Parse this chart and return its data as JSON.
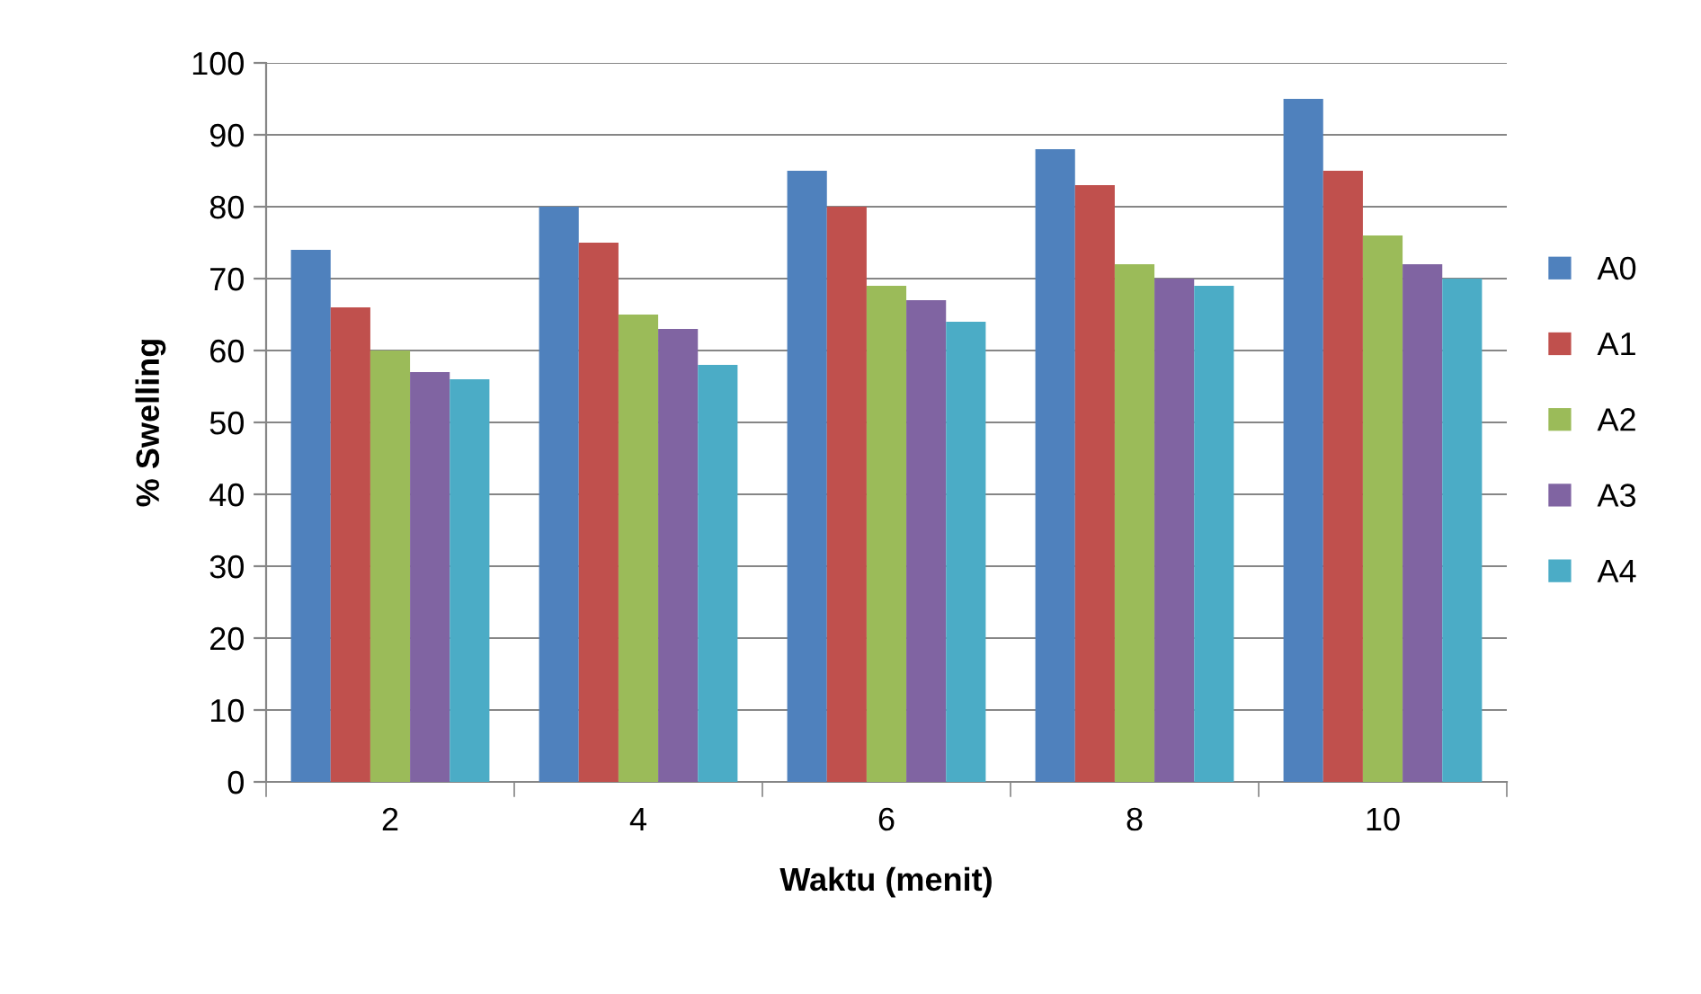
{
  "chart_data": {
    "type": "bar",
    "xlabel": "Waktu (menit)",
    "ylabel": "% Swelling",
    "categories": [
      "2",
      "4",
      "6",
      "8",
      "10"
    ],
    "series": [
      {
        "name": "A0",
        "color": "#4f81bd",
        "values": [
          74,
          80,
          85,
          88,
          95
        ]
      },
      {
        "name": "A1",
        "color": "#c0504d",
        "values": [
          66,
          75,
          80,
          83,
          85
        ]
      },
      {
        "name": "A2",
        "color": "#9bbb59",
        "values": [
          60,
          65,
          69,
          72,
          76
        ]
      },
      {
        "name": "A3",
        "color": "#8064a2",
        "values": [
          57,
          63,
          67,
          70,
          72
        ]
      },
      {
        "name": "A4",
        "color": "#4bacc6",
        "values": [
          56,
          58,
          64,
          69,
          70
        ]
      }
    ],
    "ylim": [
      0,
      100
    ],
    "yticks": [
      0,
      10,
      20,
      30,
      40,
      50,
      60,
      70,
      80,
      90,
      100
    ],
    "grid": "y",
    "legend": "right"
  }
}
